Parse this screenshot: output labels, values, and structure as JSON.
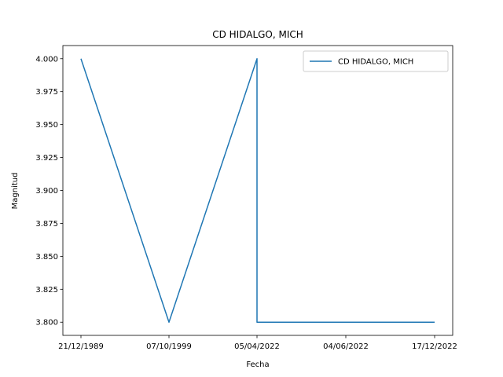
{
  "chart_data": {
    "type": "line",
    "title": "CD HIDALGO, MICH",
    "xlabel": "Fecha",
    "ylabel": "Magnitud",
    "categories": [
      "21/12/1989",
      "07/10/1999",
      "05/04/2022",
      "05/04/2022",
      "04/06/2022",
      "17/12/2022"
    ],
    "x_tick_labels": [
      "21/12/1989",
      "07/10/1999",
      "05/04/2022",
      "04/06/2022",
      "17/12/2022"
    ],
    "series": [
      {
        "name": "CD HIDALGO, MICH",
        "color": "#1f77b4",
        "values": [
          4.0,
          3.8,
          4.0,
          3.8,
          3.8,
          3.8
        ]
      }
    ],
    "y_ticks": [
      "3.800",
      "3.825",
      "3.850",
      "3.875",
      "3.900",
      "3.925",
      "3.950",
      "3.975",
      "4.000"
    ],
    "ylim": [
      3.79,
      4.01
    ],
    "grid": false,
    "legend_position": "top-right"
  }
}
